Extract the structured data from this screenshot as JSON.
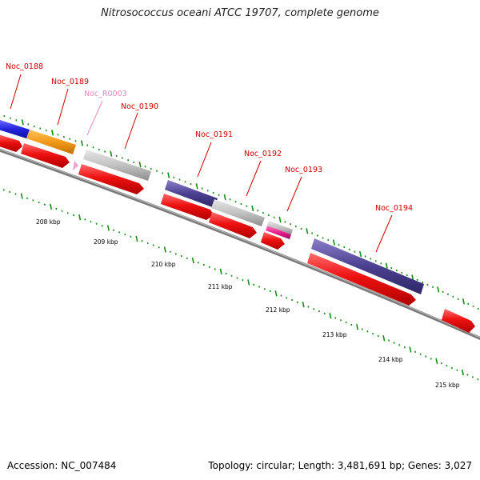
{
  "title": "Nitrosococcus oceani ATCC 19707, complete genome",
  "footer": {
    "accession": "Accession: NC_007484",
    "stats": "Topology: circular; Length: 3,481,691 bp; Genes: 3,027"
  },
  "genes": [
    {
      "label": "Noc_0188",
      "color": "#cc0000"
    },
    {
      "label": "Noc_0189",
      "color": "#cc0000"
    },
    {
      "label": "Noc_R0003",
      "color": "#e58bc0"
    },
    {
      "label": "Noc_0190",
      "color": "#cc0000"
    },
    {
      "label": "Noc_0191",
      "color": "#cc0000"
    },
    {
      "label": "Noc_0192",
      "color": "#cc0000"
    },
    {
      "label": "Noc_0193",
      "color": "#cc0000"
    },
    {
      "label": "Noc_0194",
      "color": "#cc0000"
    }
  ],
  "scale_labels": [
    "208 kbp",
    "209 kbp",
    "210 kbp",
    "211 kbp",
    "212 kbp",
    "213 kbp",
    "214 kbp",
    "215 kbp"
  ],
  "colors": {
    "cds": "#ee1111",
    "blue_feature": "#2b2bdd",
    "orange_feature": "#f29a1a",
    "gray_feature": "#bdbdbd",
    "purple_feature": "#4a3f8f",
    "pink_feature": "#e8218c",
    "backbone": "#7a7a7a",
    "tick": "#1b8a1b"
  }
}
